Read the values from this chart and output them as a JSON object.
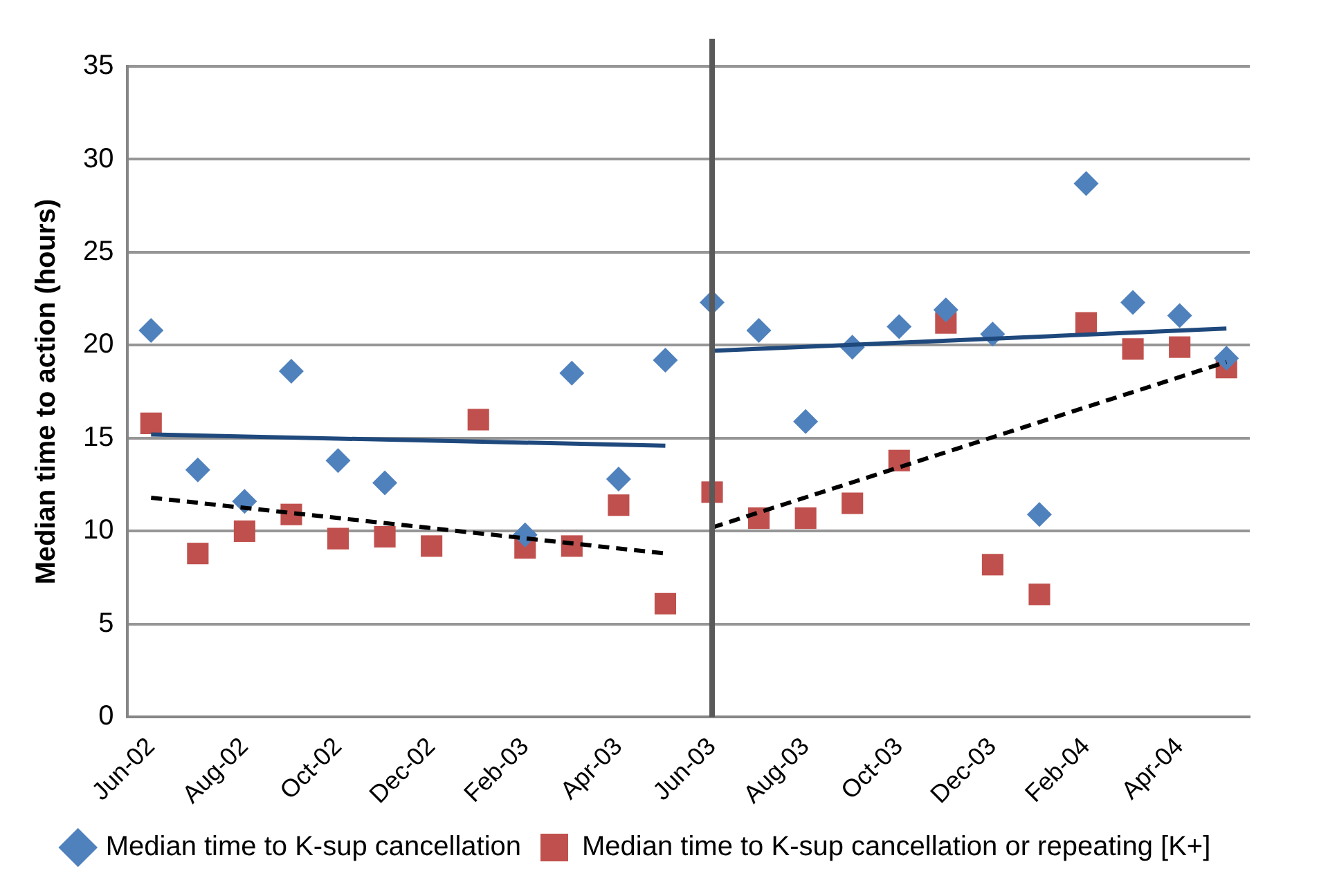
{
  "chart_data": {
    "type": "scatter",
    "ylabel": "Median time to action (hours)",
    "categories": [
      "Jun-02",
      null,
      "Aug-02",
      null,
      "Oct-02",
      null,
      "Dec-02",
      null,
      "Feb-03",
      null,
      "Apr-03",
      null,
      "Jun-03",
      null,
      "Aug-03",
      null,
      "Oct-03",
      null,
      "Dec-03",
      null,
      "Feb-04",
      null,
      "Apr-04",
      null
    ],
    "series": [
      {
        "name": "Median time to K-sup cancellation",
        "marker": "diamond",
        "color": "#4f81bd",
        "values": [
          20.8,
          13.3,
          11.6,
          18.6,
          13.8,
          12.6,
          null,
          null,
          9.8,
          18.5,
          12.8,
          19.2,
          22.3,
          20.8,
          15.9,
          19.9,
          21.0,
          21.9,
          20.6,
          10.9,
          28.7,
          22.3,
          21.6,
          19.3
        ]
      },
      {
        "name": "Median time to K-sup cancellation or repeating [K+]",
        "marker": "square",
        "color": "#c0504d",
        "values": [
          15.8,
          8.8,
          10.0,
          10.9,
          9.6,
          9.7,
          9.2,
          16.0,
          9.1,
          9.2,
          11.4,
          6.1,
          12.1,
          10.7,
          10.7,
          11.5,
          13.8,
          21.2,
          8.2,
          6.6,
          21.2,
          19.8,
          19.9,
          18.8
        ]
      },
      {
        "type": "line",
        "marker": "none",
        "line_style": "solid",
        "color": "#1f497d",
        "values": [
          15.2,
          null,
          null,
          null,
          null,
          null,
          null,
          null,
          null,
          null,
          null,
          14.6,
          null,
          null,
          null,
          null,
          null,
          null,
          null,
          null,
          null,
          null,
          null,
          null
        ]
      },
      {
        "type": "line",
        "marker": "none",
        "line_style": "dashed",
        "color": "#000000",
        "values": [
          11.8,
          null,
          null,
          null,
          null,
          null,
          null,
          null,
          null,
          null,
          null,
          8.8,
          null,
          null,
          null,
          null,
          null,
          null,
          null,
          null,
          null,
          null,
          null,
          null
        ]
      },
      {
        "type": "line",
        "marker": "none",
        "line_style": "solid",
        "color": "#1f497d",
        "values": [
          null,
          null,
          null,
          null,
          null,
          null,
          null,
          null,
          null,
          null,
          null,
          null,
          19.7,
          null,
          null,
          null,
          null,
          null,
          null,
          null,
          null,
          null,
          null,
          20.9
        ]
      },
      {
        "type": "line",
        "marker": "none",
        "line_style": "dashed",
        "color": "#000000",
        "values": [
          null,
          null,
          null,
          null,
          null,
          null,
          null,
          null,
          null,
          null,
          null,
          null,
          10.2,
          null,
          null,
          null,
          null,
          null,
          null,
          null,
          null,
          null,
          null,
          19.1
        ]
      }
    ],
    "ylim": [
      0,
      35
    ],
    "yticks": [
      0,
      5,
      10,
      15,
      20,
      25,
      30,
      35
    ],
    "grid": "y",
    "legend": "bottom",
    "ref_lines": [
      {
        "axis": "x",
        "value": "Jun-03",
        "color": "#595959"
      }
    ]
  }
}
